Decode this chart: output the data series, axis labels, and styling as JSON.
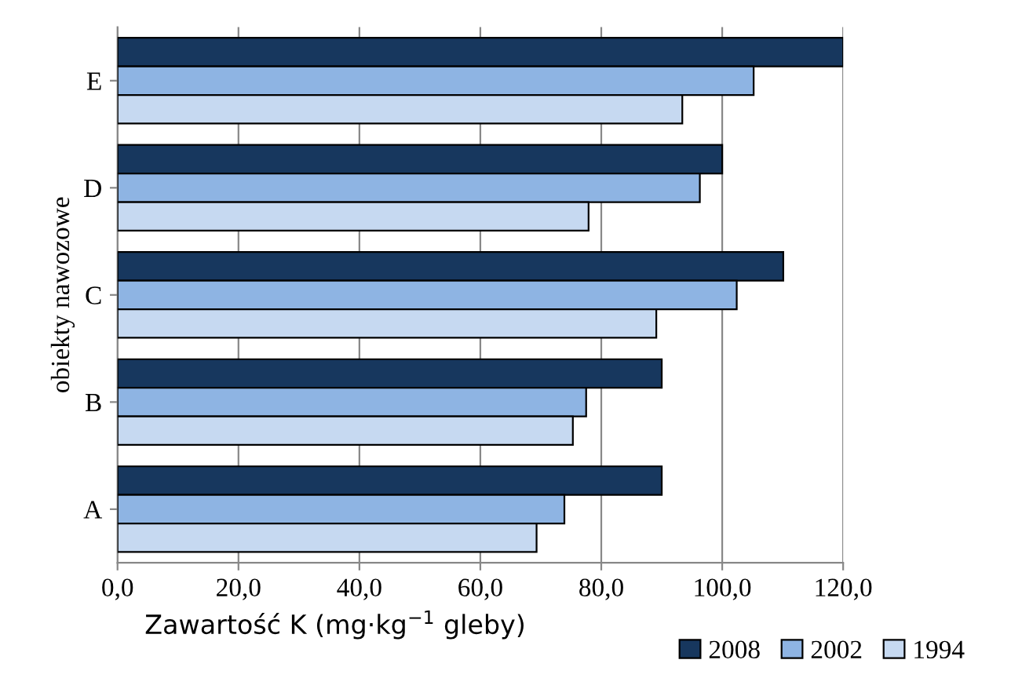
{
  "chart_data": {
    "type": "bar",
    "orientation": "horizontal",
    "categories": [
      "E",
      "D",
      "C",
      "B",
      "A"
    ],
    "series": [
      {
        "name": "2008",
        "color": "#17375e",
        "values": [
          120,
          100,
          110.1,
          90,
          90
        ]
      },
      {
        "name": "2002",
        "color": "#8eb4e3",
        "values": [
          105.2,
          96.3,
          102.4,
          77.5,
          73.9
        ]
      },
      {
        "name": "1994",
        "color": "#c6d9f1",
        "values": [
          93.4,
          77.9,
          89.1,
          75.3,
          69.3
        ]
      }
    ],
    "xlim": [
      0,
      120
    ],
    "xticks": [
      {
        "value": 0,
        "label": "0,0"
      },
      {
        "value": 20,
        "label": "20,0"
      },
      {
        "value": 40,
        "label": "40,0"
      },
      {
        "value": 60,
        "label": "60,0"
      },
      {
        "value": 80,
        "label": "80,0"
      },
      {
        "value": 100,
        "label": "100,0"
      },
      {
        "value": 120,
        "label": "120,0"
      }
    ],
    "xlabel": "Zawartość K (mg·kg$^{−1}$ gleby)",
    "ylabel": "obiekty nawozowe",
    "grid": "x",
    "legend": "bottom right"
  }
}
